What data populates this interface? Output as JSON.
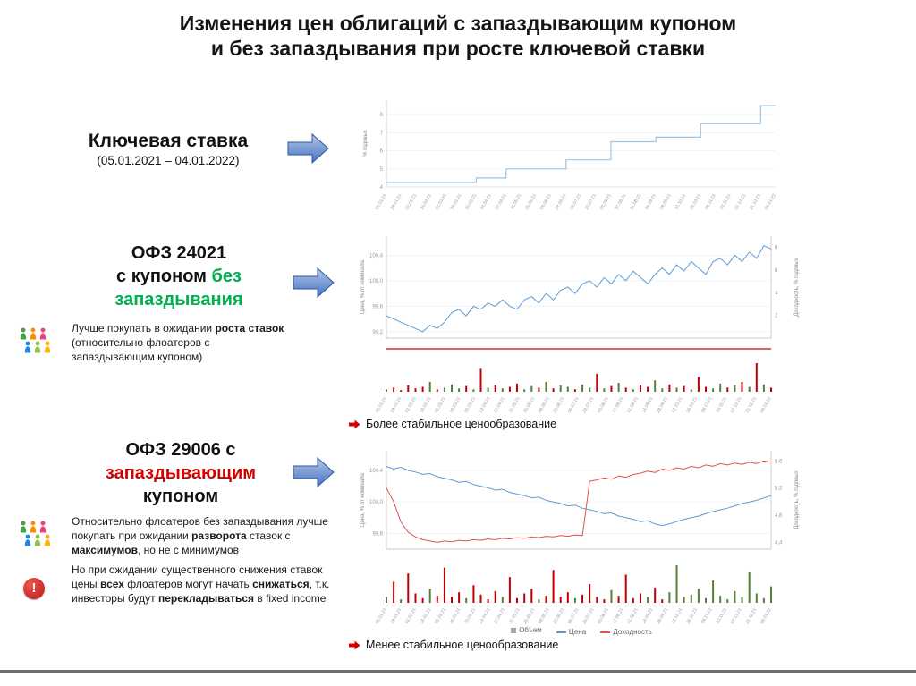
{
  "slide": {
    "title": [
      "Изменения цен облигаций с запаздывающим купоном",
      "и без запаздывания при росте ключевой ставки"
    ]
  },
  "colors": {
    "accent_green": "#00b050",
    "accent_red": "#d40000",
    "arrow_blue": "#4472c4",
    "key_rate_blue": "#9dc3e6",
    "price_blue": "#5b9bd5",
    "yield_red": "#e05252",
    "volume_green": "#538135",
    "volume_red": "#c00000"
  },
  "icons": {
    "warning_glyph": "!"
  },
  "key_rate": {
    "heading": "Ключевая ставка",
    "period": "(05.01.2021 – 04.01.2022)"
  },
  "ofz24021": {
    "heading_l1": [
      {
        "t": "ОФЗ 24021"
      }
    ],
    "heading_l2": [
      {
        "t": "с купоном "
      },
      {
        "t": "без",
        "s": "green"
      }
    ],
    "heading_l3": [
      {
        "t": "запаздывания",
        "s": "green"
      }
    ],
    "bullet": [
      {
        "t": "Лучше покупать в ожидании "
      },
      {
        "t": "роста ставок",
        "s": "b"
      },
      {
        "t": " (относительно флоатеров с запаздывающим купоном)"
      }
    ],
    "note": "Более стабильное ценообразование"
  },
  "ofz29006": {
    "heading_l1": [
      {
        "t": "ОФЗ 29006 с"
      }
    ],
    "heading_l2": [
      {
        "t": "запаздывающим",
        "s": "red"
      }
    ],
    "heading_l3": [
      {
        "t": "купоном"
      }
    ],
    "bullet1": [
      {
        "t": "Относительно флоатеров без запаздывания лучше покупать при ожидании "
      },
      {
        "t": "разворота",
        "s": "b"
      },
      {
        "t": " ставок с "
      },
      {
        "t": "максимумов",
        "s": "b"
      },
      {
        "t": ", но не с минимумов"
      }
    ],
    "bullet2": [
      {
        "t": "Но при ожидании существенного снижения ставок цены "
      },
      {
        "t": "всех",
        "s": "b"
      },
      {
        "t": " флоатеров могут начать "
      },
      {
        "t": "снижаться",
        "s": "b"
      },
      {
        "t": ", т.к. инвесторы будут "
      },
      {
        "t": "перекладываться",
        "s": "b"
      },
      {
        "t": " в fixed income"
      }
    ],
    "note": "Менее стабильное ценообразование"
  },
  "chart_data": [
    {
      "id": "key_rate",
      "type": "line",
      "step": true,
      "title": "Ключевая ставка (05.01.2021 – 04.01.2022)",
      "ylabel": "% годовых",
      "ylim": [
        4,
        8.8
      ],
      "yticks": [
        {
          "v": 4,
          "l": "4"
        },
        {
          "v": 5,
          "l": "5"
        },
        {
          "v": 6,
          "l": "6"
        },
        {
          "v": 7,
          "l": "7"
        },
        {
          "v": 8,
          "l": "8"
        }
      ],
      "x": [
        "05.01.21",
        "19.01.21",
        "02.02.21",
        "16.02.21",
        "02.03.21",
        "16.03.21",
        "30.03.21",
        "13.04.21",
        "27.04.21",
        "11.05.21",
        "25.05.21",
        "08.06.21",
        "22.06.21",
        "06.07.21",
        "20.07.21",
        "03.08.21",
        "17.08.21",
        "31.08.21",
        "14.09.21",
        "28.09.21",
        "12.10.21",
        "26.10.21",
        "09.11.21",
        "23.11.21",
        "07.12.21",
        "21.12.21",
        "04.01.22"
      ],
      "values": [
        4.25,
        4.25,
        4.25,
        4.25,
        4.25,
        4.25,
        4.5,
        4.5,
        5,
        5,
        5,
        5,
        5.5,
        5.5,
        5.5,
        6.5,
        6.5,
        6.5,
        6.75,
        6.75,
        6.75,
        7.5,
        7.5,
        7.5,
        7.5,
        8.5,
        8.5
      ]
    },
    {
      "id": "ofz24021",
      "type": "line",
      "title": "ОФЗ 24021 (купон без запаздывания)",
      "ylabel_left": "Цена, % от номинала",
      "ylabel_right": "Доходность, % годовых",
      "ylim_left": [
        99.1,
        100.7
      ],
      "yticks_left": [
        {
          "v": 100.4,
          "l": "100,4"
        },
        {
          "v": 100,
          "l": "100,0"
        },
        {
          "v": 99.6,
          "l": "99,6"
        },
        {
          "v": 99.2,
          "l": "99,2"
        }
      ],
      "ylim_right": [
        0,
        9
      ],
      "yticks_right": [
        {
          "v": 8,
          "l": "8"
        },
        {
          "v": 6,
          "l": "6"
        },
        {
          "v": 4,
          "l": "4"
        },
        {
          "v": 2,
          "l": "2"
        }
      ],
      "yield_style": "constant",
      "x": [
        "05.01.21",
        "19.01.21",
        "02.02.21",
        "16.02.21",
        "02.03.21",
        "16.03.21",
        "30.03.21",
        "13.04.21",
        "27.04.21",
        "11.05.21",
        "25.05.21",
        "08.06.21",
        "22.06.21",
        "06.07.21",
        "20.07.21",
        "03.08.21",
        "17.08.21",
        "31.08.21",
        "14.09.21",
        "28.09.21",
        "12.10.21",
        "26.10.21",
        "09.11.21",
        "23.11.21",
        "07.12.21",
        "21.12.21",
        "04.01.22"
      ],
      "price": [
        99.45,
        99.4,
        99.35,
        99.3,
        99.25,
        99.2,
        99.3,
        99.25,
        99.35,
        99.5,
        99.55,
        99.45,
        99.6,
        99.55,
        99.65,
        99.6,
        99.7,
        99.6,
        99.55,
        99.7,
        99.75,
        99.65,
        99.8,
        99.7,
        99.85,
        99.9,
        99.8,
        99.95,
        100.0,
        99.9,
        100.05,
        99.95,
        100.1,
        100.0,
        100.15,
        100.05,
        99.95,
        100.1,
        100.2,
        100.1,
        100.25,
        100.15,
        100.3,
        100.2,
        100.1,
        100.3,
        100.35,
        100.25,
        100.4,
        100.3,
        100.45,
        100.35,
        100.55,
        100.5
      ],
      "volume": [
        3,
        5,
        2,
        8,
        4,
        6,
        12,
        3,
        5,
        9,
        4,
        7,
        3,
        28,
        5,
        8,
        4,
        6,
        10,
        3,
        7,
        5,
        12,
        4,
        8,
        6,
        3,
        9,
        5,
        22,
        4,
        7,
        11,
        5,
        3,
        8,
        6,
        14,
        4,
        9,
        5,
        7,
        3,
        18,
        6,
        4,
        10,
        5,
        8,
        12,
        6,
        35,
        9,
        5
      ]
    },
    {
      "id": "ofz29006",
      "type": "line",
      "title": "ОФЗ 29006 (запаздывающий купон)",
      "ylabel_left": "Цена, % от номинала",
      "ylabel_right": "Доходность, % годовых",
      "ylim_left": [
        99.4,
        100.65
      ],
      "yticks_left": [
        {
          "v": 100.4,
          "l": "100,4"
        },
        {
          "v": 100,
          "l": "100,0"
        },
        {
          "v": 99.6,
          "l": "99,6"
        }
      ],
      "ylim_right": [
        4.3,
        5.75
      ],
      "yticks_right": [
        {
          "v": 5.6,
          "l": "5,6"
        },
        {
          "v": 5.2,
          "l": "5,2"
        },
        {
          "v": 4.8,
          "l": "4,8"
        },
        {
          "v": 4.4,
          "l": "4,4"
        }
      ],
      "x": [
        "05.01.21",
        "19.01.21",
        "02.02.21",
        "16.02.21",
        "02.03.21",
        "16.03.21",
        "30.03.21",
        "13.04.21",
        "27.04.21",
        "11.05.21",
        "25.05.21",
        "08.06.21",
        "22.06.21",
        "06.07.21",
        "20.07.21",
        "03.08.21",
        "17.08.21",
        "31.08.21",
        "14.09.21",
        "28.09.21",
        "12.10.21",
        "26.10.21",
        "09.11.21",
        "23.11.21",
        "07.12.21",
        "21.12.21",
        "04.01.22"
      ],
      "price": [
        100.45,
        100.42,
        100.44,
        100.4,
        100.38,
        100.35,
        100.36,
        100.32,
        100.3,
        100.28,
        100.25,
        100.26,
        100.22,
        100.2,
        100.18,
        100.15,
        100.16,
        100.12,
        100.1,
        100.08,
        100.05,
        100.06,
        100.02,
        100.0,
        99.98,
        99.95,
        99.96,
        99.92,
        99.9,
        99.88,
        99.85,
        99.86,
        99.82,
        99.8,
        99.78,
        99.75,
        99.76,
        99.72,
        99.7,
        99.72,
        99.75,
        99.78,
        99.8,
        99.82,
        99.85,
        99.88,
        99.9,
        99.92,
        99.95,
        99.98,
        100.0,
        100.02,
        100.05,
        100.08
      ],
      "yield": [
        5.2,
        5.0,
        4.7,
        4.55,
        4.48,
        4.44,
        4.42,
        4.4,
        4.42,
        4.41,
        4.43,
        4.42,
        4.44,
        4.43,
        4.45,
        4.44,
        4.46,
        4.45,
        4.47,
        4.46,
        4.48,
        4.47,
        4.49,
        4.48,
        4.5,
        4.49,
        4.51,
        4.5,
        5.3,
        5.32,
        5.35,
        5.33,
        5.38,
        5.36,
        5.4,
        5.42,
        5.45,
        5.43,
        5.48,
        5.46,
        5.5,
        5.48,
        5.52,
        5.5,
        5.54,
        5.52,
        5.56,
        5.54,
        5.57,
        5.55,
        5.58,
        5.56,
        5.6,
        5.58
      ],
      "volume": [
        5,
        18,
        3,
        25,
        8,
        4,
        12,
        6,
        30,
        5,
        9,
        4,
        15,
        7,
        3,
        10,
        5,
        22,
        4,
        8,
        12,
        3,
        6,
        28,
        5,
        9,
        4,
        7,
        16,
        5,
        3,
        11,
        6,
        24,
        4,
        8,
        5,
        13,
        3,
        9,
        32,
        5,
        7,
        12,
        4,
        19,
        6,
        3,
        10,
        5,
        26,
        8,
        4,
        14
      ],
      "legend": [
        {
          "label": "Объем",
          "color": "#a6a6a6"
        },
        {
          "label": "Цена",
          "color": "#5b9bd5"
        },
        {
          "label": "Доходность",
          "color": "#e05252"
        }
      ]
    }
  ]
}
